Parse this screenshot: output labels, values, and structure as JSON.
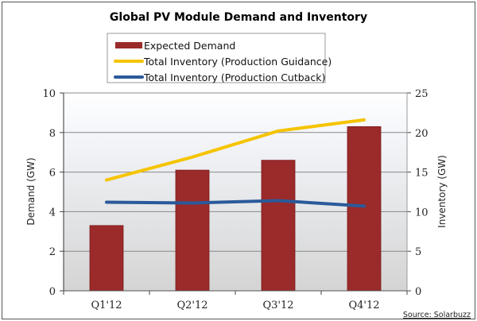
{
  "chart_data": {
    "type": "bar",
    "title": "Global PV Module Demand and Inventory",
    "categories": [
      "Q1'12",
      "Q2'12",
      "Q3'12",
      "Q4'12"
    ],
    "series": [
      {
        "name": "Expected Demand",
        "type": "bar",
        "axis": "left",
        "color": "#9b2a2a",
        "values": [
          3.3,
          6.1,
          6.6,
          8.3
        ]
      },
      {
        "name": "Total Inventory (Production Guidance)",
        "type": "line",
        "axis": "right",
        "color": "#f5c400",
        "values": [
          14.0,
          16.9,
          20.2,
          21.6
        ]
      },
      {
        "name": "Total Inventory (Production Cutback)",
        "type": "line",
        "axis": "right",
        "color": "#2a5a9a",
        "values": [
          11.2,
          11.1,
          11.4,
          10.7
        ]
      }
    ],
    "ylabel": "Demand (GW)",
    "ylim": [
      0,
      10
    ],
    "yticks": [
      0,
      2,
      4,
      6,
      8,
      10
    ],
    "y2label": "Inventory (GW)",
    "y2lim": [
      0,
      25
    ],
    "y2ticks": [
      0,
      5,
      10,
      15,
      20,
      25
    ],
    "grid": true,
    "legend_position": "top-center",
    "source": "Source: Solarbuzz"
  }
}
